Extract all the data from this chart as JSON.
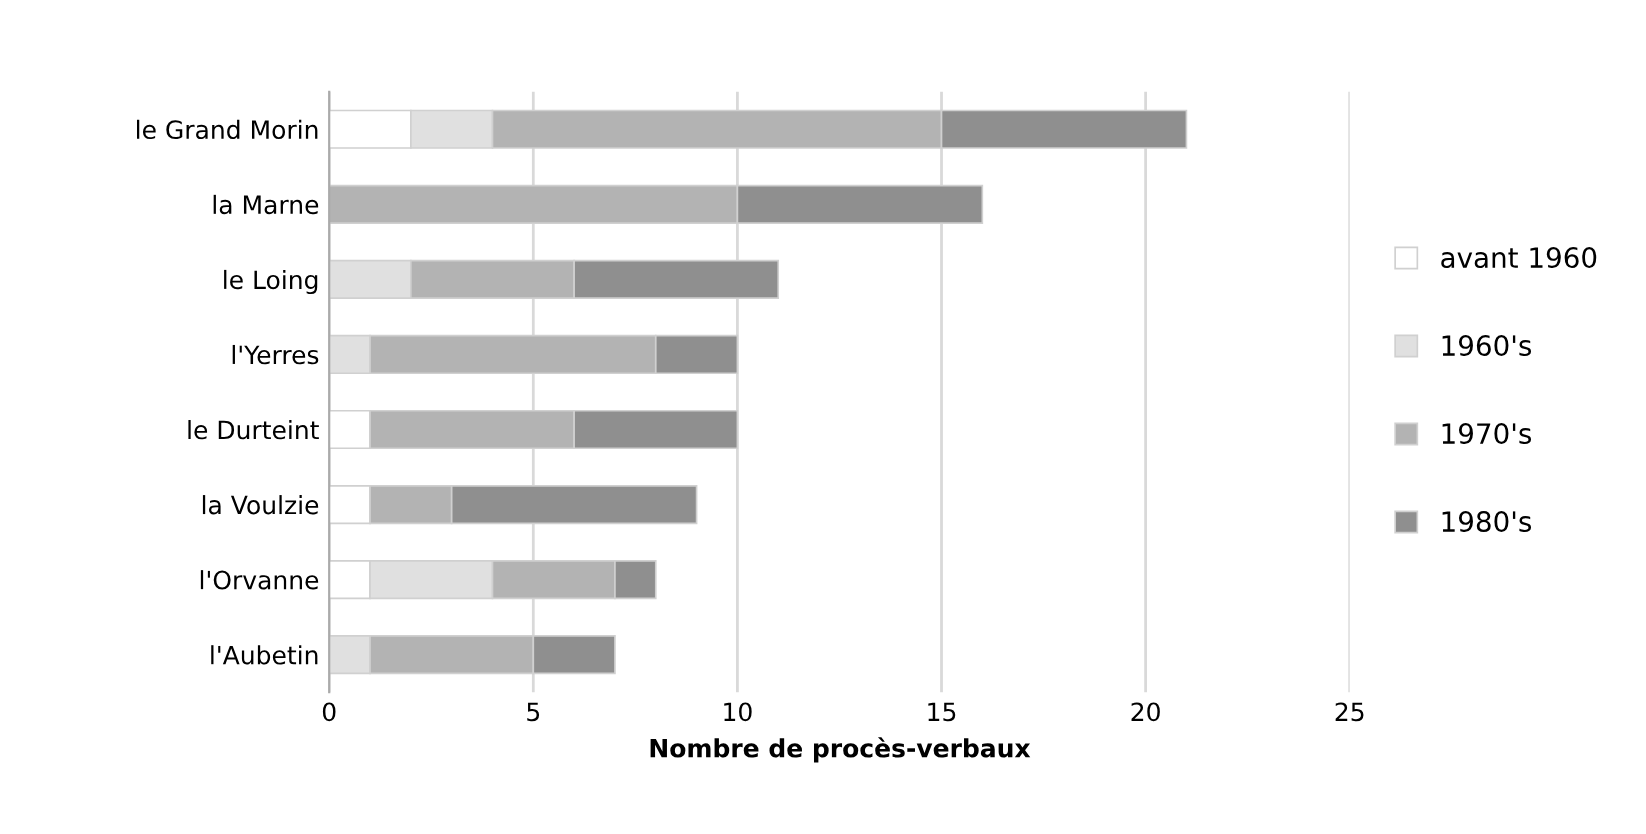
{
  "chart_data": {
    "type": "bar",
    "orientation": "horizontal",
    "stacked": true,
    "xlabel": "Nombre de procès-verbaux",
    "categories": [
      "le Grand Morin",
      "la Marne",
      "le Loing",
      "l'Yerres",
      "le Durteint",
      "la Voulzie",
      "l'Orvanne",
      "l'Aubetin"
    ],
    "series": [
      {
        "name": "avant 1960",
        "color": "#ffffff",
        "values": [
          2,
          0,
          0,
          0,
          1,
          1,
          1,
          0
        ]
      },
      {
        "name": "1960's",
        "color": "#e0e0e0",
        "values": [
          2,
          0,
          2,
          1,
          0,
          0,
          3,
          1
        ]
      },
      {
        "name": "1970's",
        "color": "#b3b3b3",
        "values": [
          11,
          10,
          4,
          7,
          5,
          2,
          3,
          4
        ]
      },
      {
        "name": "1980's",
        "color": "#8f8f8f",
        "values": [
          6,
          6,
          5,
          2,
          4,
          6,
          1,
          2
        ]
      }
    ],
    "xlim": [
      0,
      25
    ],
    "xticks": [
      0,
      5,
      10,
      15,
      20,
      25
    ],
    "grid": "x",
    "legend": "right"
  }
}
